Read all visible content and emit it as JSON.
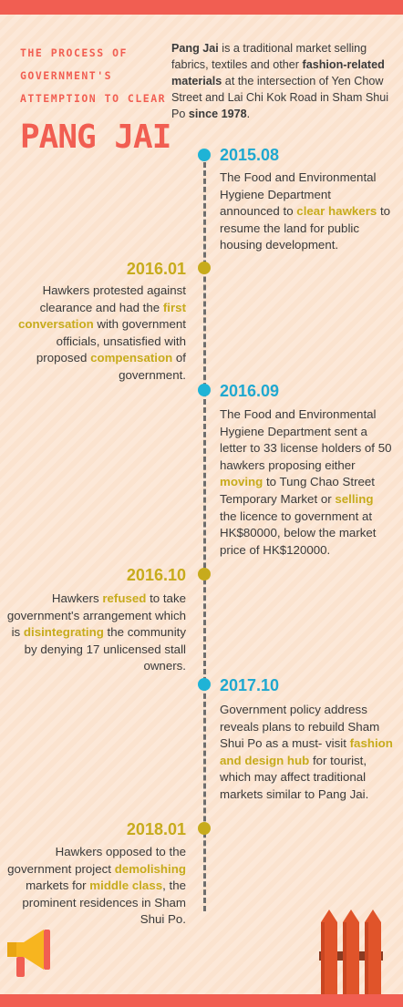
{
  "header": {
    "kicker_lines": [
      "THE PROCESS OF",
      "GOVERNMENT'S",
      "ATTEMPTION TO CLEAR"
    ],
    "title": "PANG JAI"
  },
  "intro": {
    "segments": [
      {
        "text": "Pang Jai",
        "bold": true
      },
      {
        "text": " is a traditional market selling fabrics, textiles and other ",
        "bold": false
      },
      {
        "text": "fashion-related materials",
        "bold": true
      },
      {
        "text": " at the intersection of Yen Chow Street and Lai Chi Kok Road in Sham Shui Po ",
        "bold": false
      },
      {
        "text": "since 1978",
        "bold": true
      },
      {
        "text": ".",
        "bold": false
      }
    ]
  },
  "colors": {
    "accent_red": "#f15e52",
    "accent_blue": "#1fb3d6",
    "accent_gold": "#c7ab1c",
    "background": "#fbe3cf"
  },
  "events": [
    {
      "date": "2015.08",
      "side": "right",
      "text": "The Food and Environmental Hygiene Department announced to [[clear hawkers]] to resume the land for public housing development."
    },
    {
      "date": "2016.01",
      "side": "left",
      "text": "Hawkers protested against clearance and had the [[first conversation]] with government officials, unsatisfied with proposed [[compensation]] of government."
    },
    {
      "date": "2016.09",
      "side": "right",
      "text": "The Food and Environmental Hygiene Department sent a letter to 33 license holders of 50 hawkers proposing either [[moving]] to Tung Chao Street Temporary Market or [[selling]] the licence to government at HK$80000, below the market price of HK$120000."
    },
    {
      "date": "2016.10",
      "side": "left",
      "text": "Hawkers [[refused]] to take government's arrangement which is [[disintegrating]] the community by denying 17 unlicensed stall owners."
    },
    {
      "date": "2017.10",
      "side": "right",
      "text": "Government policy address reveals plans to rebuild Sham Shui Po as a must- visit [[fashion and design hub]] for tourist, which may affect traditional markets similar to Pang Jai."
    },
    {
      "date": "2018.01",
      "side": "left",
      "text": "Hawkers opposed to the government project [[demolishing]] markets for [[middle class]], the prominent residences in Sham Shui Po."
    }
  ],
  "icons": [
    "megaphone-icon",
    "fence-icon"
  ]
}
